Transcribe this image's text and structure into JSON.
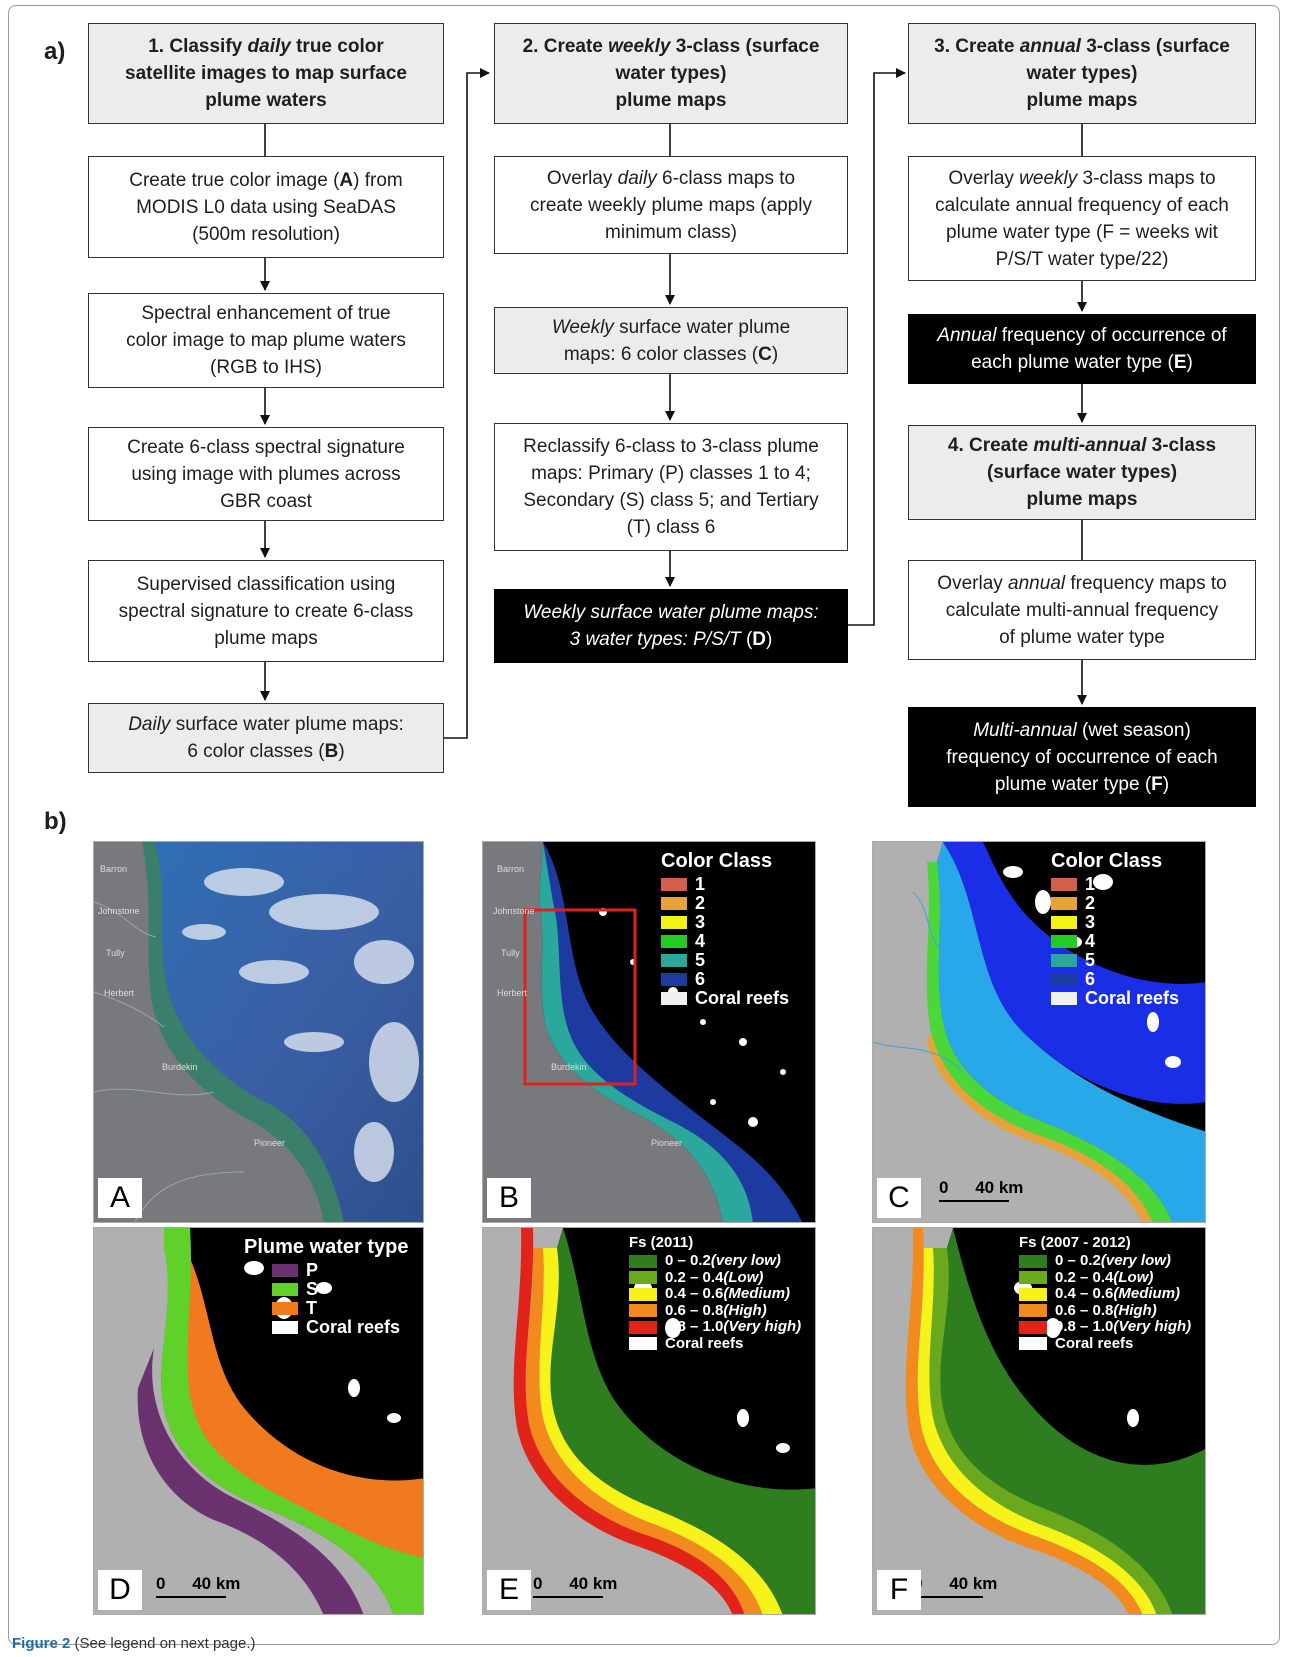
{
  "panel_a_label": "a)",
  "panel_b_label": "b)",
  "flow": {
    "col1": [
      {
        "lines": [
          "1. Classify <i>daily</i> true color",
          "satellite images to map surface",
          "plume waters"
        ]
      },
      {
        "lines": [
          "Create true color image (<b>A</b>) from",
          "MODIS L0 data using SeaDAS",
          "(500m resolution)"
        ]
      },
      {
        "lines": [
          "Spectral enhancement of true",
          "color image to map plume waters",
          "(RGB to IHS)"
        ]
      },
      {
        "lines": [
          "Create 6-class spectral signature",
          "using image with plumes across",
          "GBR coast"
        ]
      },
      {
        "lines": [
          "Supervised classification using",
          "spectral signature to create 6-class",
          "plume maps"
        ]
      },
      {
        "lines": [
          "<i>Daily</i> surface water plume maps:",
          "6 color classes (<b>B</b>)"
        ]
      }
    ],
    "col2": [
      {
        "lines": [
          "2. Create <i>weekly</i>  3-class (surface",
          "water types)",
          "plume maps"
        ]
      },
      {
        "lines": [
          "Overlay <i>daily</i> 6-class maps to",
          "create weekly plume maps (apply",
          "minimum class)"
        ]
      },
      {
        "lines": [
          "<i>Weekly</i> surface water plume",
          "maps: 6 color classes (<b>C</b>)"
        ]
      },
      {
        "lines": [
          "Reclassify 6-class to 3-class plume",
          "maps: Primary (P) classes 1 to 4;",
          "Secondary (S) class 5; and Tertiary",
          "(T) class 6"
        ]
      },
      {
        "lines": [
          "<i>Weekly surface water plume maps:</i>",
          "<i>3 water types: P/S/T</i> (<b>D</b>)"
        ]
      }
    ],
    "col3": [
      {
        "lines": [
          "3. Create <i>annual</i> 3-class (surface",
          "water types)",
          "plume maps"
        ]
      },
      {
        "lines": [
          "Overlay <i>weekly</i> 3-class maps to",
          "calculate annual frequency of each",
          "plume water type (F = weeks wit",
          "P/S/T water type/22)"
        ]
      },
      {
        "lines": [
          "<i>Annual</i> frequency of occurrence of",
          "each plume water type (<b>E</b>)"
        ]
      },
      {
        "lines": [
          "4. Create <i>multi-annual</i> 3-class",
          "(surface water types)",
          "plume maps"
        ]
      },
      {
        "lines": [
          "Overlay <i>annual</i> frequency maps to",
          "calculate multi-annual frequency",
          "of plume water type"
        ]
      },
      {
        "lines": [
          "<i>Multi-annual</i> (wet season)",
          "frequency of occurrence of each",
          "plume water type (<b>F</b>)"
        ]
      }
    ]
  },
  "maps": {
    "letters": [
      "A",
      "B",
      "C",
      "D",
      "E",
      "F"
    ],
    "rivers": [
      "Barron",
      "Johnstone",
      "Tully",
      "Herbert",
      "Burdekin",
      "Pioneer"
    ],
    "color_class": {
      "title": "Color Class",
      "items": [
        {
          "label": "1",
          "color": "#d2604a"
        },
        {
          "label": "2",
          "color": "#e8a23a"
        },
        {
          "label": "3",
          "color": "#f2f214"
        },
        {
          "label": "4",
          "color": "#22cc22"
        },
        {
          "label": "5",
          "color": "#2aa89c"
        },
        {
          "label": "6",
          "color": "#1c3aa0"
        },
        {
          "label": "Coral reefs",
          "color": "#f0f0f0"
        }
      ]
    },
    "plume_type": {
      "title": "Plume water type",
      "items": [
        {
          "label": "P",
          "color": "#6b3270"
        },
        {
          "label": "S",
          "color": "#5fd12a"
        },
        {
          "label": "T",
          "color": "#f27a1e"
        },
        {
          "label": "Coral reefs",
          "color": "#ffffff"
        }
      ]
    },
    "fs_2011": {
      "title": "Fs (2011)",
      "items": [
        {
          "label": "0 – 0.2 ",
          "tag": "(very low)",
          "color": "#2e7d1e"
        },
        {
          "label": "0.2 – 0.4 ",
          "tag": "(Low)",
          "color": "#6aa81e"
        },
        {
          "label": "0.4 – 0.6 ",
          "tag": "(Medium)",
          "color": "#f6f21a"
        },
        {
          "label": "0.6 – 0.8 ",
          "tag": "(High)",
          "color": "#f28a1e"
        },
        {
          "label": "0.8 – 1.0 ",
          "tag": "(Very high)",
          "color": "#e2231a"
        },
        {
          "label": "Coral reefs",
          "tag": "",
          "color": "#ffffff"
        }
      ]
    },
    "fs_2007_2012": {
      "title": "Fs (2007 - 2012)",
      "items": [
        {
          "label": "0 – 0.2 ",
          "tag": "(very low)",
          "color": "#2e7d1e"
        },
        {
          "label": "0.2 – 0.4 ",
          "tag": "(Low)",
          "color": "#6aa81e"
        },
        {
          "label": "0.4 – 0.6 ",
          "tag": "(Medium)",
          "color": "#f6f21a"
        },
        {
          "label": "0.6 – 0.8 ",
          "tag": "(High)",
          "color": "#f28a1e"
        },
        {
          "label": "0.8 – 1.0 ",
          "tag": "(Very high)",
          "color": "#e2231a"
        },
        {
          "label": "Coral reefs",
          "tag": "",
          "color": "#ffffff"
        }
      ]
    },
    "scale": {
      "zero": "0",
      "dist": "40 km"
    }
  },
  "caption": {
    "bold": "Figure 2",
    "rest": " (See legend on next page.)"
  }
}
